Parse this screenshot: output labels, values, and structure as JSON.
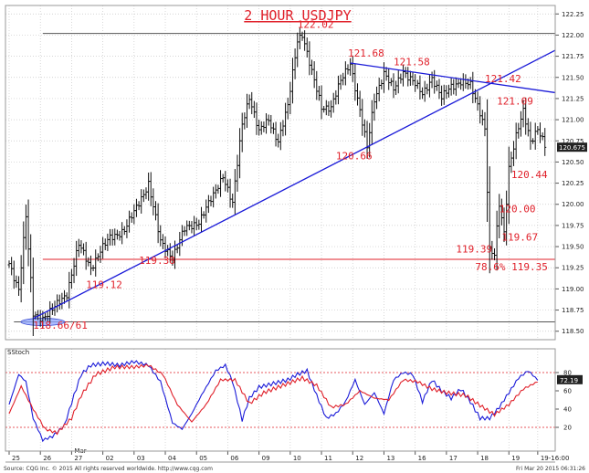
{
  "chart_data": {
    "type": "ohlc",
    "title": "2 HOUR USDJPY",
    "price_axis": {
      "ylim": [
        118.4,
        122.35
      ],
      "ticks": [
        "122.25",
        "122.00",
        "121.75",
        "121.50",
        "121.25",
        "121.00",
        "120.75",
        "120.50",
        "120.25",
        "120.00",
        "119.75",
        "119.50",
        "119.25",
        "119.00",
        "118.75",
        "118.50"
      ],
      "last_value": "120.675"
    },
    "x_axis": {
      "ticks": [
        "25",
        "26",
        "27",
        "02",
        "03",
        "04",
        "05",
        "06",
        "09",
        "10",
        "11",
        "12",
        "13",
        "16",
        "17",
        "18",
        "19",
        "19-16:00"
      ],
      "month_label": "Mar"
    },
    "annotations": [
      {
        "text": "122.02",
        "price": 122.02
      },
      {
        "text": "121.68",
        "price": 121.68
      },
      {
        "text": "121.58",
        "price": 121.58
      },
      {
        "text": "121.42",
        "price": 121.42
      },
      {
        "text": "121.09",
        "price": 121.09
      },
      {
        "text": "120.66",
        "price": 120.66
      },
      {
        "text": "120.44",
        "price": 120.44
      },
      {
        "text": "120.00",
        "price": 120.0
      },
      {
        "text": "119.67",
        "price": 119.67
      },
      {
        "text": "119.39",
        "price": 119.39
      },
      {
        "text": "119.38",
        "price": 119.38
      },
      {
        "text": "119.12",
        "price": 119.12
      },
      {
        "text": "78.6% 119.35",
        "price": 119.35
      },
      {
        "text": "118.66/61",
        "price": 118.66
      }
    ],
    "horizontal_levels": [
      {
        "price": 122.02,
        "color": "#555555"
      },
      {
        "price": 119.35,
        "color": "#e0202a"
      },
      {
        "price": 118.61,
        "color": "#555555"
      }
    ],
    "trendlines": [
      {
        "name": "support",
        "from": {
          "bar": 10,
          "price": 118.65
        },
        "to": {
          "bar": 230,
          "price": 121.82
        },
        "color": "#1a1ad8"
      },
      {
        "name": "resistance",
        "from": {
          "bar": 142,
          "price": 121.67
        },
        "to": {
          "bar": 230,
          "price": 121.32
        },
        "color": "#1a1ad8"
      }
    ],
    "price_series_pivots": [
      [
        0,
        119.3
      ],
      [
        4,
        119.0
      ],
      [
        7,
        119.85
      ],
      [
        10,
        118.7
      ],
      [
        14,
        118.66
      ],
      [
        18,
        118.75
      ],
      [
        24,
        118.95
      ],
      [
        29,
        119.52
      ],
      [
        34,
        119.25
      ],
      [
        38,
        119.45
      ],
      [
        42,
        119.6
      ],
      [
        48,
        119.7
      ],
      [
        52,
        119.9
      ],
      [
        58,
        120.25
      ],
      [
        63,
        119.55
      ],
      [
        68,
        119.38
      ],
      [
        73,
        119.7
      ],
      [
        79,
        119.8
      ],
      [
        85,
        120.1
      ],
      [
        89,
        120.35
      ],
      [
        93,
        120.0
      ],
      [
        97,
        120.95
      ],
      [
        100,
        121.28
      ],
      [
        104,
        120.85
      ],
      [
        108,
        121.0
      ],
      [
        112,
        120.75
      ],
      [
        116,
        121.15
      ],
      [
        120,
        121.95
      ],
      [
        122,
        122.02
      ],
      [
        126,
        121.55
      ],
      [
        130,
        121.15
      ],
      [
        134,
        121.15
      ],
      [
        138,
        121.45
      ],
      [
        142,
        121.68
      ],
      [
        146,
        121.1
      ],
      [
        149,
        120.66
      ],
      [
        152,
        121.25
      ],
      [
        156,
        121.55
      ],
      [
        160,
        121.35
      ],
      [
        164,
        121.58
      ],
      [
        168,
        121.45
      ],
      [
        172,
        121.3
      ],
      [
        176,
        121.5
      ],
      [
        180,
        121.25
      ],
      [
        184,
        121.4
      ],
      [
        188,
        121.45
      ],
      [
        192,
        121.4
      ],
      [
        196,
        121.1
      ],
      [
        198,
        120.9
      ],
      [
        200,
        119.45
      ],
      [
        202,
        119.39
      ],
      [
        204,
        120.0
      ],
      [
        206,
        119.67
      ],
      [
        208,
        120.44
      ],
      [
        211,
        120.8
      ],
      [
        214,
        121.09
      ],
      [
        217,
        120.75
      ],
      [
        220,
        120.9
      ],
      [
        223,
        120.68
      ]
    ],
    "stochastic": {
      "label": "SStoch",
      "ylim": [
        0,
        100
      ],
      "ticks": [
        "80",
        "60",
        "40",
        "20"
      ],
      "levels": [
        80,
        20
      ],
      "last_value": "72.19",
      "k_pivots": [
        [
          0,
          45
        ],
        [
          4,
          78
        ],
        [
          7,
          70
        ],
        [
          10,
          30
        ],
        [
          14,
          6
        ],
        [
          18,
          10
        ],
        [
          23,
          22
        ],
        [
          27,
          55
        ],
        [
          30,
          78
        ],
        [
          34,
          88
        ],
        [
          40,
          90
        ],
        [
          46,
          88
        ],
        [
          52,
          92
        ],
        [
          58,
          88
        ],
        [
          63,
          70
        ],
        [
          68,
          25
        ],
        [
          72,
          18
        ],
        [
          76,
          35
        ],
        [
          80,
          55
        ],
        [
          86,
          82
        ],
        [
          90,
          88
        ],
        [
          93,
          70
        ],
        [
          97,
          28
        ],
        [
          100,
          52
        ],
        [
          104,
          64
        ],
        [
          110,
          68
        ],
        [
          116,
          72
        ],
        [
          120,
          78
        ],
        [
          124,
          82
        ],
        [
          128,
          55
        ],
        [
          132,
          30
        ],
        [
          136,
          35
        ],
        [
          140,
          48
        ],
        [
          144,
          72
        ],
        [
          148,
          45
        ],
        [
          152,
          58
        ],
        [
          156,
          35
        ],
        [
          160,
          72
        ],
        [
          164,
          80
        ],
        [
          168,
          78
        ],
        [
          172,
          48
        ],
        [
          176,
          72
        ],
        [
          180,
          60
        ],
        [
          184,
          52
        ],
        [
          188,
          62
        ],
        [
          192,
          48
        ],
        [
          196,
          30
        ],
        [
          200,
          30
        ],
        [
          204,
          42
        ],
        [
          208,
          58
        ],
        [
          212,
          74
        ],
        [
          216,
          82
        ],
        [
          220,
          72
        ]
      ],
      "d_pivots": [
        [
          0,
          35
        ],
        [
          5,
          65
        ],
        [
          10,
          40
        ],
        [
          15,
          18
        ],
        [
          20,
          14
        ],
        [
          26,
          30
        ],
        [
          30,
          55
        ],
        [
          36,
          78
        ],
        [
          44,
          86
        ],
        [
          52,
          86
        ],
        [
          58,
          88
        ],
        [
          64,
          78
        ],
        [
          70,
          45
        ],
        [
          76,
          26
        ],
        [
          82,
          45
        ],
        [
          88,
          72
        ],
        [
          94,
          72
        ],
        [
          100,
          46
        ],
        [
          106,
          58
        ],
        [
          114,
          66
        ],
        [
          122,
          74
        ],
        [
          128,
          66
        ],
        [
          134,
          42
        ],
        [
          140,
          45
        ],
        [
          146,
          60
        ],
        [
          152,
          52
        ],
        [
          158,
          50
        ],
        [
          164,
          72
        ],
        [
          170,
          70
        ],
        [
          176,
          62
        ],
        [
          182,
          58
        ],
        [
          190,
          55
        ],
        [
          196,
          44
        ],
        [
          202,
          34
        ],
        [
          208,
          45
        ],
        [
          214,
          62
        ],
        [
          220,
          70
        ]
      ]
    },
    "footer": {
      "source": "Source: CQG Inc. © 2015 All rights reserved worldwide. http://www.cqg.com",
      "timestamp": "Fri Mar 20 2015 06:31:26"
    },
    "colors": {
      "up": "#111111",
      "price": "#111111",
      "trend": "#1a1ad8",
      "level_red": "#e0202a",
      "stoch_k": "#1a1ad8",
      "stoch_d": "#e0202a",
      "annotation": "#e0202a",
      "ellipse": "#8fa6ff"
    },
    "grid": true
  }
}
